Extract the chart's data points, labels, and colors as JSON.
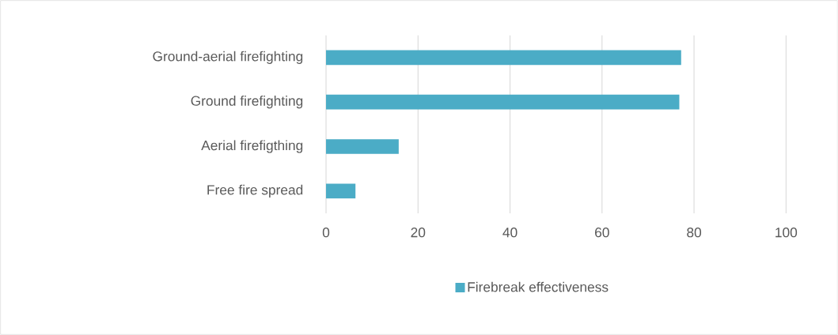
{
  "chart_data": {
    "type": "bar",
    "orientation": "horizontal",
    "categories": [
      "Ground-aerial firefighting",
      "Ground firefighting",
      "Aerial firefigthing",
      "Free fire spread"
    ],
    "series": [
      {
        "name": "Firebreak effectiveness",
        "color": "#4bacc6",
        "values": [
          77.2,
          76.8,
          15.8,
          6.4
        ]
      }
    ],
    "xlim": [
      0,
      100
    ],
    "xticks": [
      0,
      20,
      40,
      60,
      80,
      100
    ],
    "grid": "x",
    "legend": "bottom"
  }
}
